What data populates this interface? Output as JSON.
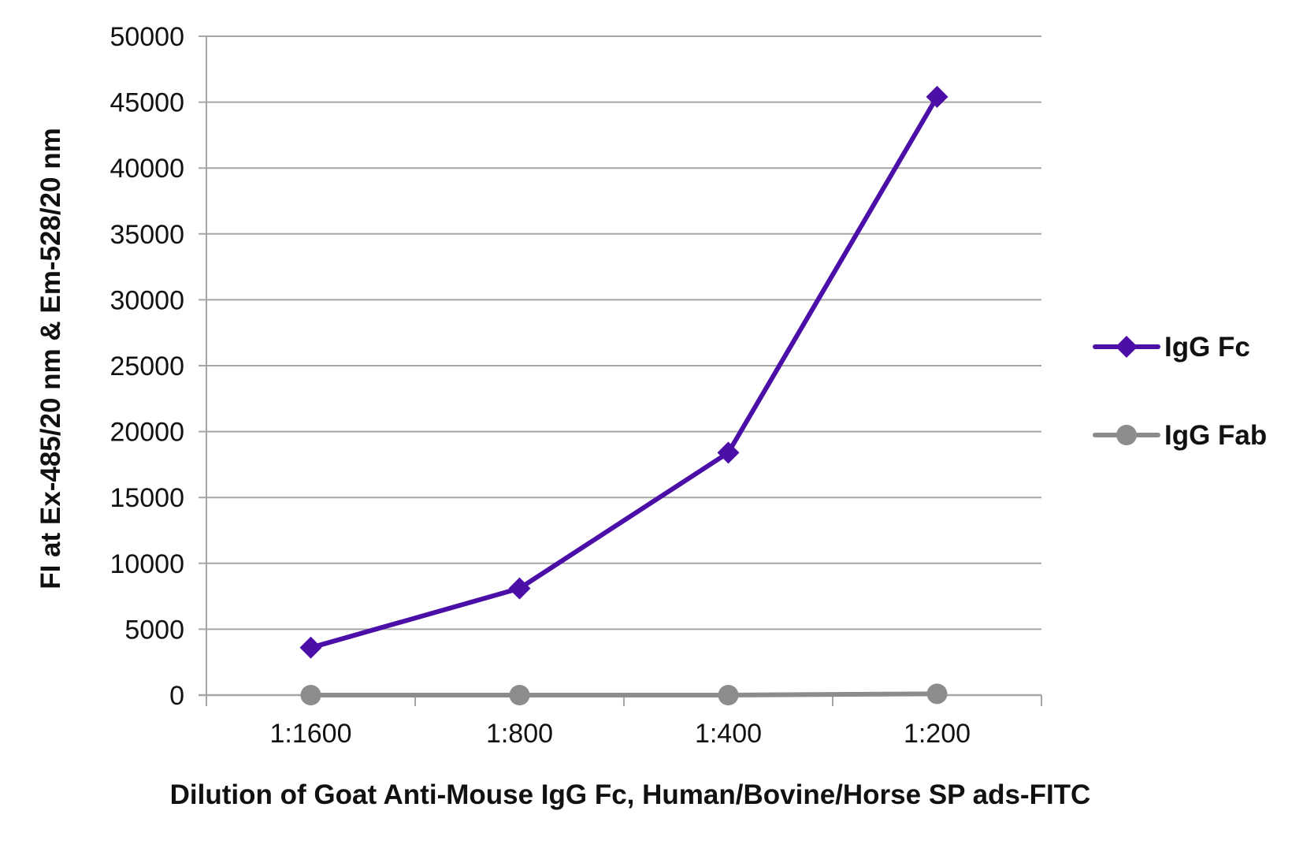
{
  "chart_data": {
    "type": "line",
    "title": "",
    "xlabel": "Dilution of Goat Anti-Mouse IgG Fc, Human/Bovine/Horse SP ads-FITC",
    "ylabel": "FI at Ex-485/20 nm & Em-528/20 nm",
    "categories": [
      "1:1600",
      "1:800",
      "1:400",
      "1:200"
    ],
    "ylim": [
      0,
      50000
    ],
    "yticks": [
      0,
      5000,
      10000,
      15000,
      20000,
      25000,
      30000,
      35000,
      40000,
      45000,
      50000
    ],
    "grid": true,
    "legend_position": "right",
    "series": [
      {
        "name": "IgG Fc",
        "values": [
          3600,
          8100,
          18400,
          45400
        ],
        "color": "#4b0fa8",
        "marker": "diamond"
      },
      {
        "name": "IgG Fab",
        "values": [
          0,
          0,
          0,
          100
        ],
        "color": "#8c8c8c",
        "marker": "circle"
      }
    ]
  },
  "colors": {
    "gridline": "#a6a6a6",
    "axis": "#a6a6a6"
  }
}
